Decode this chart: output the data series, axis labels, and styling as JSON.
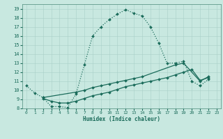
{
  "xlabel": "Humidex (Indice chaleur)",
  "bg_color": "#c8e8e0",
  "line_color": "#1a6b5a",
  "grid_color": "#a8cfc8",
  "xlim": [
    -0.5,
    23.5
  ],
  "ylim": [
    8,
    19.5
  ],
  "yticks": [
    8,
    9,
    10,
    11,
    12,
    13,
    14,
    15,
    16,
    17,
    18,
    19
  ],
  "xticks": [
    0,
    1,
    2,
    3,
    4,
    5,
    6,
    7,
    8,
    9,
    10,
    11,
    12,
    13,
    14,
    15,
    16,
    17,
    18,
    19,
    20,
    21,
    22,
    23
  ],
  "curve1_x": [
    0,
    1,
    2,
    3,
    4,
    5,
    6,
    7,
    8,
    9,
    10,
    11,
    12,
    13,
    14,
    15,
    16,
    17,
    18,
    19,
    20,
    21,
    22
  ],
  "curve1_y": [
    10.5,
    9.7,
    9.2,
    8.2,
    8.2,
    8.1,
    9.6,
    12.8,
    16.0,
    17.0,
    17.8,
    18.4,
    18.9,
    18.5,
    18.2,
    17.0,
    15.2,
    13.0,
    13.0,
    13.2,
    11.0,
    10.5,
    11.2
  ],
  "curve2_x": [
    2,
    6,
    7,
    8,
    9,
    10,
    11,
    12,
    13,
    14,
    18,
    19,
    21,
    22
  ],
  "curve2_y": [
    9.2,
    9.8,
    10.0,
    10.3,
    10.5,
    10.7,
    10.9,
    11.1,
    11.3,
    11.5,
    12.8,
    13.0,
    11.0,
    11.5
  ],
  "curve3_x": [
    2,
    3,
    4,
    5,
    6,
    7,
    8,
    9,
    10,
    11,
    12,
    13,
    14,
    15,
    16,
    17,
    18,
    19,
    20,
    21,
    22
  ],
  "curve3_y": [
    9.1,
    8.8,
    8.6,
    8.6,
    8.8,
    9.1,
    9.4,
    9.6,
    9.8,
    10.1,
    10.4,
    10.6,
    10.8,
    11.0,
    11.2,
    11.4,
    11.7,
    12.0,
    12.3,
    11.1,
    11.4
  ]
}
